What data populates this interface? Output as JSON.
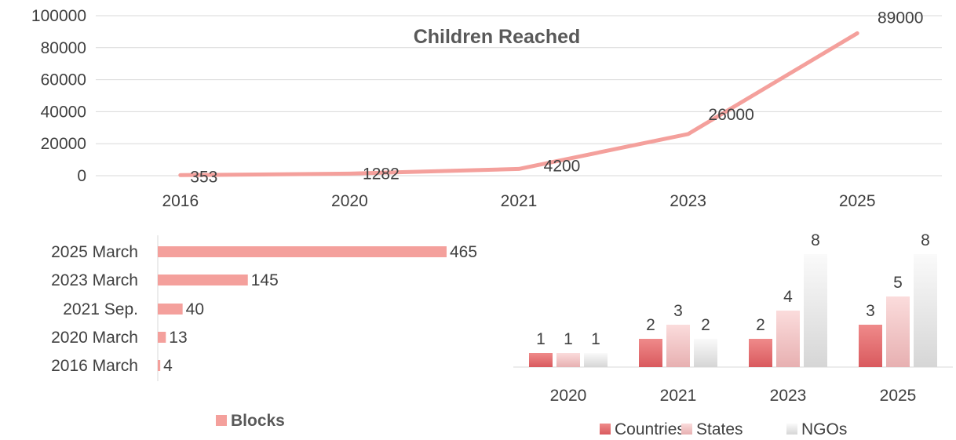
{
  "chart_data": [
    {
      "type": "line",
      "title": "Children Reached",
      "xlabel": "",
      "ylabel": "",
      "categories": [
        "2016",
        "2020",
        "2021",
        "2023",
        "2025"
      ],
      "series": [
        {
          "values": [
            353,
            1282,
            4200,
            26000,
            89000
          ]
        }
      ],
      "ylim": [
        0,
        100000
      ],
      "yticks": [
        "0",
        "20000",
        "40000",
        "60000",
        "80000",
        "100000"
      ],
      "grid": true,
      "color": "#f4a09c"
    },
    {
      "type": "bar",
      "orientation": "horizontal",
      "categories": [
        "2025 March",
        "2023 March",
        "2021 Sep.",
        "2020 March",
        "2016 March"
      ],
      "series": [
        {
          "name": "Blocks",
          "values": [
            465,
            145,
            40,
            13,
            4
          ]
        }
      ],
      "legend": "bottom",
      "color": "#f4a09c"
    },
    {
      "type": "bar",
      "categories": [
        "2020",
        "2021",
        "2023",
        "2025"
      ],
      "series": [
        {
          "name": "Countries",
          "values": [
            1,
            2,
            2,
            3
          ],
          "color": "#e8676a"
        },
        {
          "name": "States",
          "values": [
            1,
            3,
            4,
            5
          ],
          "color": "#f6c9c8"
        },
        {
          "name": "NGOs",
          "values": [
            1,
            2,
            8,
            8
          ],
          "color": "#ececec"
        }
      ],
      "legend": "bottom"
    }
  ]
}
